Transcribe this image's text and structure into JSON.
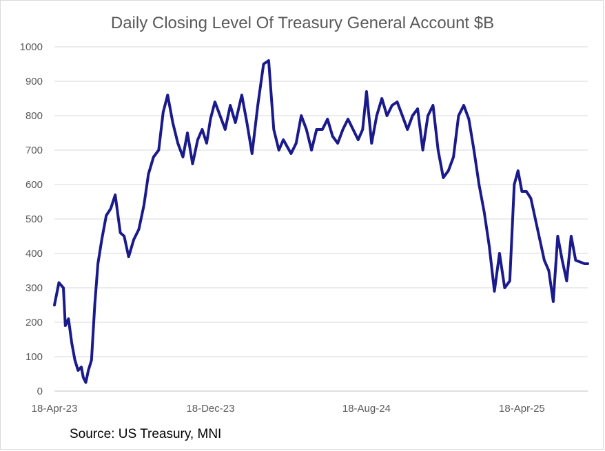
{
  "chart_data": {
    "type": "line",
    "title": "Daily Closing Level Of Treasury General Account $B",
    "xlabel": "",
    "ylabel": "",
    "ylim": [
      0,
      1000
    ],
    "yticks": [
      "0",
      "100",
      "200",
      "300",
      "400",
      "500",
      "600",
      "700",
      "800",
      "900",
      "1000"
    ],
    "xticks": [
      "18-Apr-23",
      "18-Dec-23",
      "18-Aug-24",
      "18-Apr-25"
    ],
    "xlim": [
      "2023-04-18",
      "2025-07-30"
    ],
    "grid": true,
    "legend": "none",
    "line_color": "#1a1a8c",
    "series": [
      {
        "x": [
          "2023-04-18",
          "2023-04-25",
          "2023-05-02",
          "2023-05-05",
          "2023-05-10",
          "2023-05-15",
          "2023-05-20",
          "2023-05-25",
          "2023-05-30",
          "2023-06-02",
          "2023-06-06",
          "2023-06-10",
          "2023-06-15",
          "2023-06-20",
          "2023-06-25",
          "2023-07-01",
          "2023-07-08",
          "2023-07-15",
          "2023-07-22",
          "2023-07-30",
          "2023-08-05",
          "2023-08-12",
          "2023-08-20",
          "2023-08-28",
          "2023-09-05",
          "2023-09-12",
          "2023-09-20",
          "2023-09-28",
          "2023-10-05",
          "2023-10-12",
          "2023-10-20",
          "2023-10-28",
          "2023-11-05",
          "2023-11-12",
          "2023-11-20",
          "2023-11-28",
          "2023-12-05",
          "2023-12-12",
          "2023-12-18",
          "2023-12-25",
          "2024-01-02",
          "2024-01-10",
          "2024-01-18",
          "2024-01-26",
          "2024-02-05",
          "2024-02-13",
          "2024-02-21",
          "2024-03-01",
          "2024-03-10",
          "2024-03-18",
          "2024-03-26",
          "2024-04-03",
          "2024-04-10",
          "2024-04-16",
          "2024-04-22",
          "2024-04-30",
          "2024-05-08",
          "2024-05-16",
          "2024-05-24",
          "2024-06-01",
          "2024-06-10",
          "2024-06-18",
          "2024-06-26",
          "2024-07-04",
          "2024-07-12",
          "2024-07-20",
          "2024-07-28",
          "2024-08-05",
          "2024-08-12",
          "2024-08-18",
          "2024-08-26",
          "2024-09-03",
          "2024-09-11",
          "2024-09-19",
          "2024-09-27",
          "2024-10-05",
          "2024-10-13",
          "2024-10-21",
          "2024-10-29",
          "2024-11-06",
          "2024-11-14",
          "2024-11-22",
          "2024-11-30",
          "2024-12-08",
          "2024-12-16",
          "2024-12-24",
          "2025-01-01",
          "2025-01-09",
          "2025-01-17",
          "2025-01-25",
          "2025-02-02",
          "2025-02-10",
          "2025-02-18",
          "2025-02-26",
          "2025-03-06",
          "2025-03-14",
          "2025-03-22",
          "2025-03-30",
          "2025-04-06",
          "2025-04-12",
          "2025-04-18",
          "2025-04-25",
          "2025-05-02",
          "2025-05-09",
          "2025-05-16",
          "2025-05-23",
          "2025-05-30",
          "2025-06-06",
          "2025-06-13",
          "2025-06-20",
          "2025-06-27",
          "2025-07-04",
          "2025-07-11",
          "2025-07-18",
          "2025-07-25",
          "2025-07-30"
        ],
        "values": [
          250,
          315,
          300,
          190,
          210,
          140,
          90,
          60,
          70,
          40,
          25,
          60,
          90,
          250,
          370,
          440,
          510,
          530,
          570,
          460,
          450,
          390,
          440,
          470,
          540,
          630,
          680,
          700,
          810,
          860,
          780,
          720,
          680,
          750,
          660,
          730,
          760,
          720,
          790,
          840,
          800,
          760,
          830,
          780,
          860,
          780,
          690,
          830,
          950,
          960,
          760,
          700,
          730,
          710,
          690,
          720,
          800,
          760,
          700,
          760,
          760,
          790,
          740,
          720,
          760,
          790,
          760,
          730,
          760,
          870,
          720,
          800,
          850,
          800,
          830,
          840,
          800,
          760,
          800,
          820,
          700,
          800,
          830,
          700,
          620,
          640,
          680,
          800,
          830,
          790,
          700,
          600,
          520,
          420,
          290,
          400,
          300,
          320,
          600,
          640,
          580,
          580,
          560,
          500,
          440,
          380,
          350,
          260,
          450,
          380,
          320,
          450,
          380,
          375,
          370,
          370
        ]
      }
    ]
  },
  "footer": {
    "source": "Source: US Treasury, MNI"
  }
}
